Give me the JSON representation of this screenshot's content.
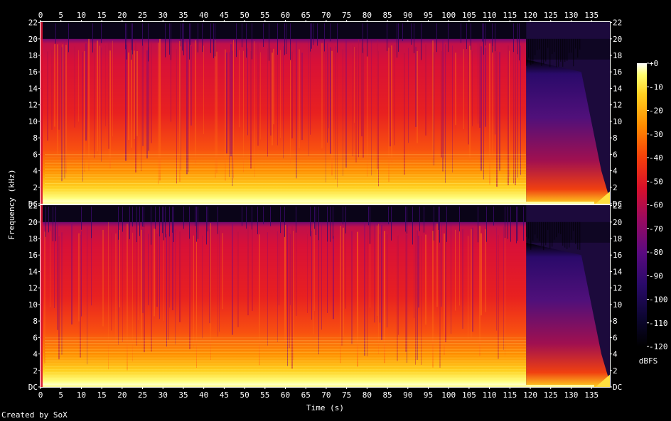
{
  "chart_data": {
    "type": "heatmap",
    "xlabel": "Time (s)",
    "ylabel": "Frequency (kHz)",
    "x_ticks": [
      0,
      5,
      10,
      15,
      20,
      25,
      30,
      35,
      40,
      45,
      50,
      55,
      60,
      65,
      70,
      75,
      80,
      85,
      90,
      95,
      100,
      105,
      110,
      115,
      120,
      125,
      130,
      135
    ],
    "xlim": [
      0,
      139.5
    ],
    "ylim": [
      0,
      22.05
    ],
    "y_ticks": [
      {
        "value": 0,
        "label": "DC"
      },
      {
        "value": 2,
        "label": "2"
      },
      {
        "value": 4,
        "label": "4"
      },
      {
        "value": 6,
        "label": "6"
      },
      {
        "value": 8,
        "label": "8"
      },
      {
        "value": 10,
        "label": "10"
      },
      {
        "value": 12,
        "label": "12"
      },
      {
        "value": 14,
        "label": "14"
      },
      {
        "value": 16,
        "label": "16"
      },
      {
        "value": 18,
        "label": "18"
      },
      {
        "value": 20,
        "label": "20"
      },
      {
        "value": 22,
        "label": "22"
      }
    ],
    "channels": 2,
    "colorbar": {
      "unit": "dBFS",
      "ticks": [
        "+0",
        "-10",
        "-20",
        "-30",
        "-40",
        "-50",
        "-60",
        "-70",
        "-80",
        "-90",
        "-100",
        "-110",
        "-120"
      ],
      "range": [
        -120,
        0
      ]
    },
    "lowpass_cutoff_khz": 20,
    "fade_out_start_s": 119,
    "end_s": 139.5,
    "grid": false,
    "colors": [
      "#000000",
      "#1a0a4a",
      "#4a0b7a",
      "#8a0a6a",
      "#c8103a",
      "#f03010",
      "#ff7a00",
      "#ffc000",
      "#ffff40",
      "#ffffff"
    ]
  },
  "footer": {
    "credit": "Created by SoX"
  }
}
